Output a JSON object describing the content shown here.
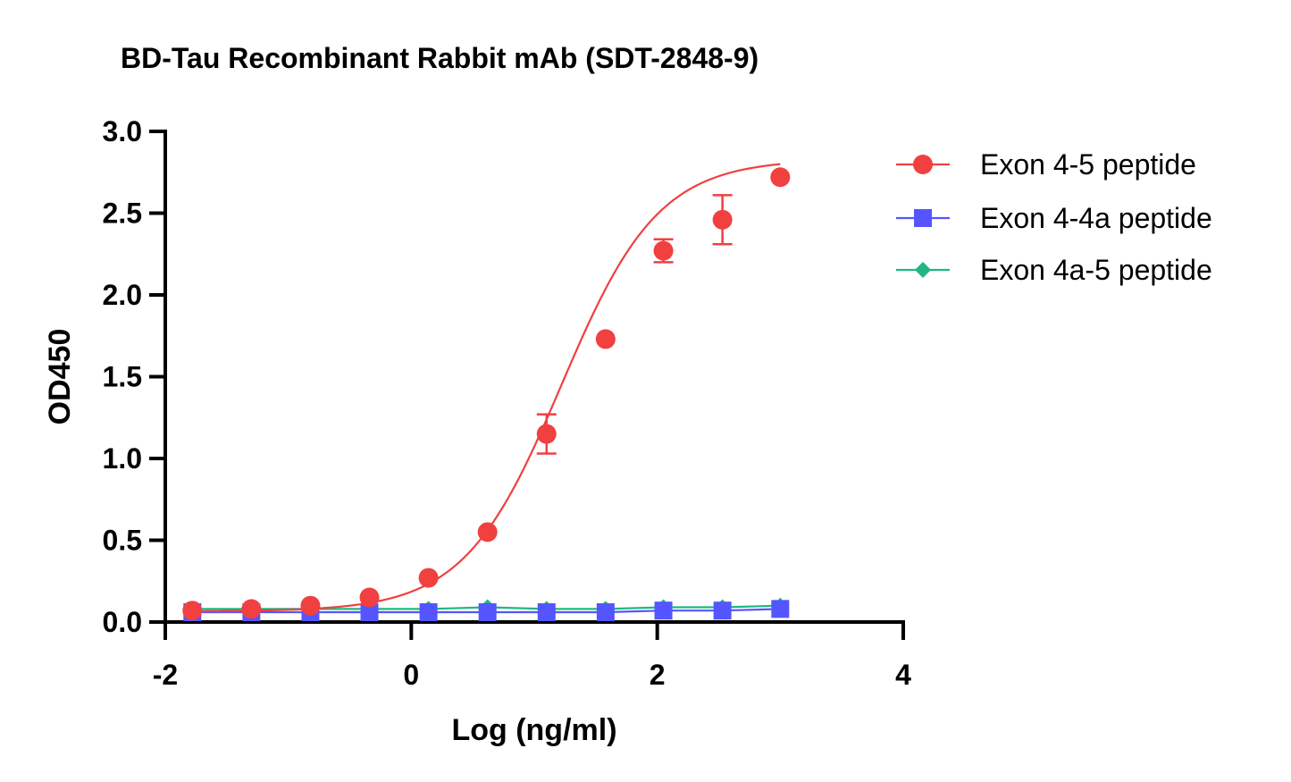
{
  "chart_data": {
    "type": "scatter",
    "title": "BD-Tau Recombinant Rabbit mAb (SDT-2848-9)",
    "xlabel": "Log (ng/ml)",
    "ylabel": "OD450",
    "xlim": [
      -2,
      4
    ],
    "ylim": [
      0,
      3.0
    ],
    "x_ticks": [
      -2,
      0,
      2,
      4
    ],
    "x_tick_labels": [
      "-2",
      "0",
      "2",
      "4"
    ],
    "y_ticks": [
      0,
      0.5,
      1.0,
      1.5,
      2.0,
      2.5,
      3.0
    ],
    "y_tick_labels": [
      "0.0",
      "0.5",
      "1.0",
      "1.5",
      "2.0",
      "2.5",
      "3.0"
    ],
    "grid": false,
    "legend_position": "top-right",
    "series": [
      {
        "name": "Exon 4-5 peptide",
        "color": "#f04040",
        "marker": "circle",
        "fit": "sigmoidal",
        "x": [
          -1.78,
          -1.3,
          -0.82,
          -0.34,
          0.14,
          0.62,
          1.1,
          1.58,
          2.05,
          2.53,
          3.0
        ],
        "y": [
          0.07,
          0.08,
          0.1,
          0.15,
          0.27,
          0.55,
          1.15,
          1.73,
          2.27,
          2.46,
          2.72
        ],
        "err": [
          0,
          0,
          0,
          0,
          0,
          0,
          0.12,
          0,
          0.07,
          0.15,
          0
        ]
      },
      {
        "name": "Exon 4-4a peptide",
        "color": "#5555ff",
        "marker": "square",
        "fit": "line",
        "x": [
          -1.78,
          -1.3,
          -0.82,
          -0.34,
          0.14,
          0.62,
          1.1,
          1.58,
          2.05,
          2.53,
          3.0
        ],
        "y": [
          0.06,
          0.06,
          0.06,
          0.06,
          0.06,
          0.06,
          0.06,
          0.06,
          0.07,
          0.07,
          0.08
        ],
        "err": [
          0,
          0,
          0,
          0,
          0,
          0,
          0,
          0,
          0,
          0,
          0
        ]
      },
      {
        "name": "Exon 4a-5 peptide",
        "color": "#20b880",
        "marker": "diamond",
        "fit": "line",
        "x": [
          -1.78,
          -1.3,
          -0.82,
          -0.34,
          0.14,
          0.62,
          1.1,
          1.58,
          2.05,
          2.53,
          3.0
        ],
        "y": [
          0.08,
          0.08,
          0.08,
          0.08,
          0.08,
          0.09,
          0.08,
          0.08,
          0.09,
          0.09,
          0.1
        ],
        "err": [
          0,
          0,
          0,
          0,
          0,
          0,
          0,
          0,
          0,
          0,
          0
        ]
      }
    ],
    "fit_params": {
      "bottom": 0.065,
      "top": 2.83,
      "log_ec50": 1.22,
      "hill_slope": 1.1
    }
  }
}
